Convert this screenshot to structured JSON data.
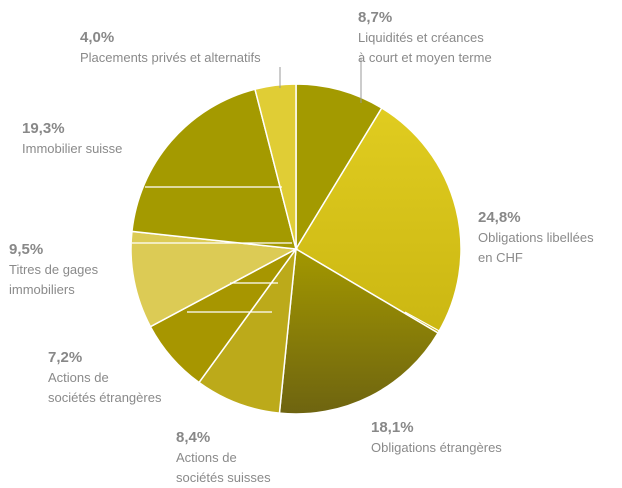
{
  "chart_data": {
    "type": "pie",
    "title": "",
    "legend": "none",
    "slices": [
      {
        "value": 8.7,
        "value_label": "8,7%",
        "label_lines": [
          "Liquidités et créances",
          "à court et moyen terme"
        ],
        "color": "#a39a00"
      },
      {
        "value": 24.8,
        "value_label": "24,8%",
        "label_lines": [
          "Obligations libellées",
          "en CHF"
        ],
        "color": "#d8c41a"
      },
      {
        "value": 18.1,
        "value_label": "18,1%",
        "label_lines": [
          "Obligations étrangères"
        ],
        "color": "#8a7d0a"
      },
      {
        "value": 8.4,
        "value_label": "8,4%",
        "label_lines": [
          "Actions de",
          "sociétés suisses"
        ],
        "color": "#bcaa1a"
      },
      {
        "value": 7.2,
        "value_label": "7,2%",
        "label_lines": [
          "Actions de",
          "sociétés étrangères"
        ],
        "color": "#a79600"
      },
      {
        "value": 9.5,
        "value_label": "9,5%",
        "label_lines": [
          "Titres de gages",
          "immobiliers"
        ],
        "color": "#dccb55"
      },
      {
        "value": 19.3,
        "value_label": "19,3%",
        "label_lines": [
          "Immobilier suisse"
        ],
        "color": "#a49a00"
      },
      {
        "value": 4.0,
        "value_label": "4,0%",
        "label_lines": [
          "Placements privés et alternatifs"
        ],
        "color": "#e0cd35"
      }
    ]
  }
}
